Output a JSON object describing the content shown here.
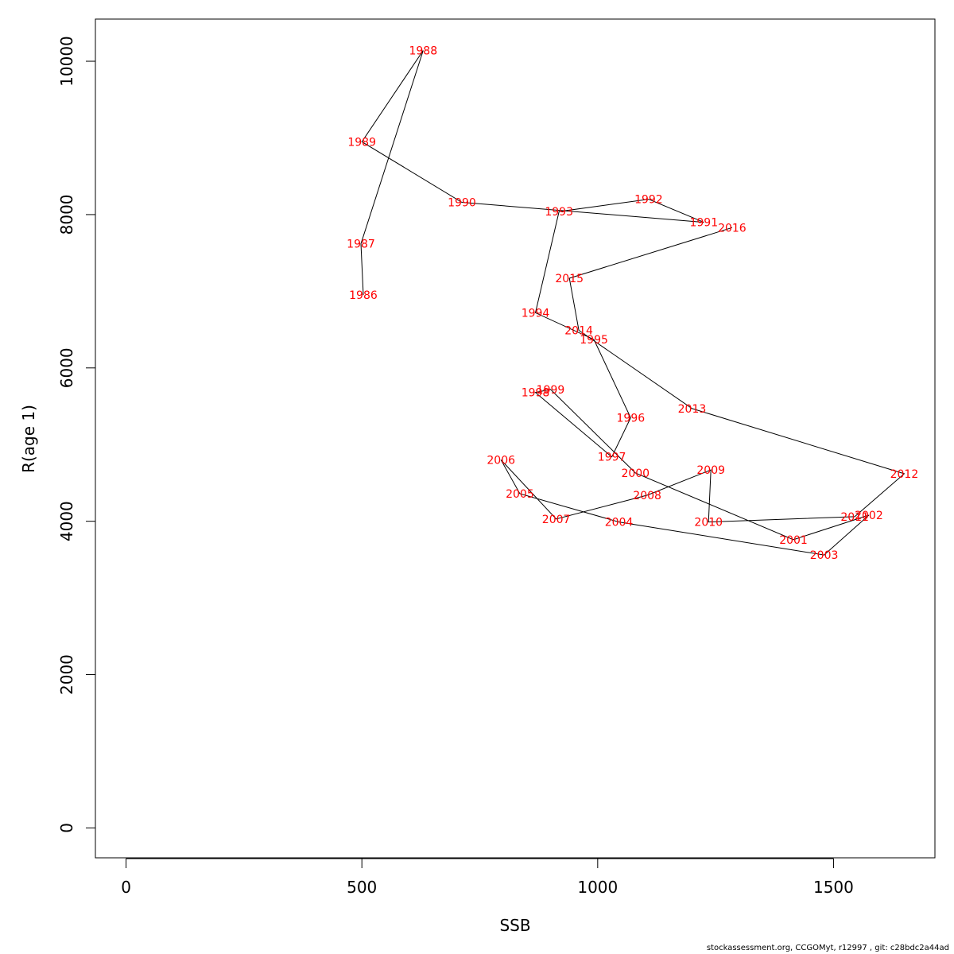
{
  "chart_data": {
    "type": "line",
    "xlabel": "SSB",
    "ylabel": "R(age 1)",
    "xlim": [
      -65,
      1715
    ],
    "ylim": [
      -400,
      10550
    ],
    "x_ticks": [
      0,
      500,
      1000,
      1500
    ],
    "y_ticks": [
      0,
      2000,
      4000,
      6000,
      8000,
      10000
    ],
    "grid": false,
    "line_color": "#000000",
    "label_color": "#ff0000",
    "points": [
      {
        "year": "1986",
        "x": 503,
        "y": 6950
      },
      {
        "year": "1987",
        "x": 498,
        "y": 7620
      },
      {
        "year": "1988",
        "x": 630,
        "y": 10140
      },
      {
        "year": "1989",
        "x": 500,
        "y": 8950
      },
      {
        "year": "1990",
        "x": 712,
        "y": 8160
      },
      {
        "year": "1991",
        "x": 1225,
        "y": 7900
      },
      {
        "year": "1992",
        "x": 1108,
        "y": 8200
      },
      {
        "year": "1993",
        "x": 918,
        "y": 8040
      },
      {
        "year": "1994",
        "x": 868,
        "y": 6720
      },
      {
        "year": "1995",
        "x": 992,
        "y": 6370
      },
      {
        "year": "1996",
        "x": 1070,
        "y": 5350
      },
      {
        "year": "1997",
        "x": 1030,
        "y": 4840
      },
      {
        "year": "1998",
        "x": 868,
        "y": 5680
      },
      {
        "year": "1999",
        "x": 900,
        "y": 5720
      },
      {
        "year": "2000",
        "x": 1080,
        "y": 4630
      },
      {
        "year": "2001",
        "x": 1415,
        "y": 3760
      },
      {
        "year": "2002",
        "x": 1575,
        "y": 4080
      },
      {
        "year": "2003",
        "x": 1480,
        "y": 3560
      },
      {
        "year": "2004",
        "x": 1045,
        "y": 3990
      },
      {
        "year": "2005",
        "x": 835,
        "y": 4360
      },
      {
        "year": "2006",
        "x": 795,
        "y": 4800
      },
      {
        "year": "2007",
        "x": 912,
        "y": 4030
      },
      {
        "year": "2008",
        "x": 1105,
        "y": 4340
      },
      {
        "year": "2009",
        "x": 1240,
        "y": 4670
      },
      {
        "year": "2010",
        "x": 1235,
        "y": 3990
      },
      {
        "year": "2011",
        "x": 1545,
        "y": 4060
      },
      {
        "year": "2012",
        "x": 1650,
        "y": 4620
      },
      {
        "year": "2013",
        "x": 1200,
        "y": 5470
      },
      {
        "year": "2014",
        "x": 960,
        "y": 6490
      },
      {
        "year": "2015",
        "x": 940,
        "y": 7170
      },
      {
        "year": "2016",
        "x": 1285,
        "y": 7830
      }
    ]
  },
  "footer": {
    "text": "stockassessment.org, CCGOMyt, r12997 , git: c28bdc2a44ad"
  }
}
